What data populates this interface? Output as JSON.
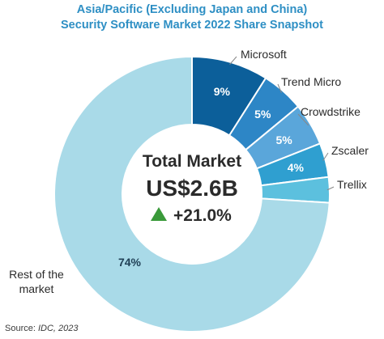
{
  "title_lines": [
    "Asia/Pacific (Excluding Japan and China)",
    "Security Software Market 2022 Share Snapshot"
  ],
  "center": {
    "label": "Total Market",
    "value": "US$2.6B",
    "growth": "+21.0%",
    "growth_icon": "triangle-up-icon",
    "growth_color": "#3a9a3a"
  },
  "source": {
    "label": "Source:",
    "value": "IDC, 2023"
  },
  "chart_data": {
    "type": "pie",
    "subtype": "donut",
    "title": "Asia/Pacific (Excluding Japan and China) Security Software Market 2022 Share Snapshot",
    "categories": [
      "Microsoft",
      "Trend Micro",
      "Crowdstrike",
      "Zscaler",
      "Trellix",
      "Rest of the market"
    ],
    "values": [
      9,
      5,
      5,
      4,
      3,
      74
    ],
    "data_labels": [
      "9%",
      "5%",
      "5%",
      "4%",
      "",
      "74%"
    ],
    "colors": [
      "#0c5f9a",
      "#2d86c6",
      "#5aa6da",
      "#2f9fd0",
      "#5cc0de",
      "#a9dae8"
    ],
    "legend_placement": "labels beside slices"
  }
}
